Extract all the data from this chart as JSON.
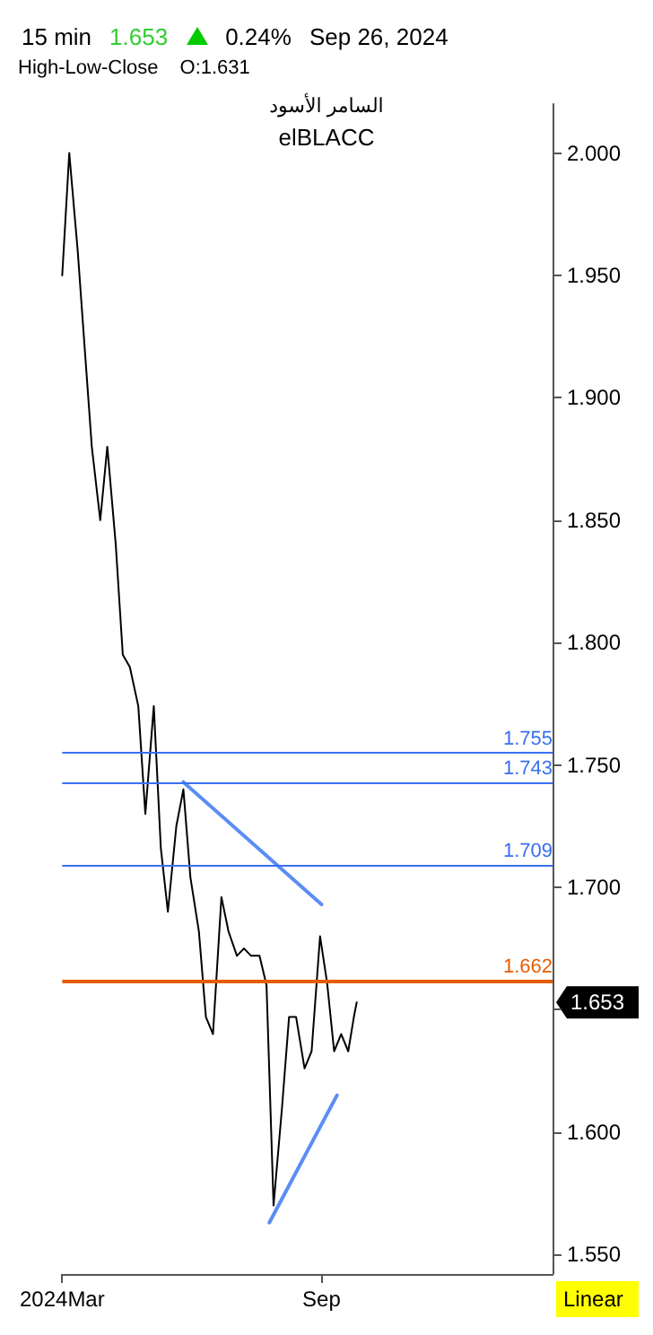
{
  "chart_data": {
    "type": "line",
    "marker": "none",
    "line_style": "solid",
    "grid": false,
    "xlim": [
      "2024-03-01",
      "2025-02-12"
    ],
    "xticks": [
      {
        "value": "2024-03-01",
        "label": "2024Mar"
      },
      {
        "value": "2024-09-01",
        "label": "Sep"
      }
    ],
    "ylim": [
      1.542,
      2.02
    ],
    "yticks": [
      {
        "value": 1.55,
        "label": "1.550"
      },
      {
        "value": 1.6,
        "label": "1.600"
      },
      {
        "value": 1.65,
        "label": null
      },
      {
        "value": 1.7,
        "label": "1.700"
      },
      {
        "value": 1.75,
        "label": "1.750"
      },
      {
        "value": 1.8,
        "label": "1.800"
      },
      {
        "value": 1.85,
        "label": "1.850"
      },
      {
        "value": 1.9,
        "label": "1.900"
      },
      {
        "value": 1.95,
        "label": "1.950"
      },
      {
        "value": 2.0,
        "label": "2.000"
      }
    ],
    "series": [
      {
        "color": "#000000",
        "x": [
          "2024-03-01",
          "2024-03-06",
          "2024-03-12",
          "2024-03-17",
          "2024-03-22",
          "2024-03-28",
          "2024-04-02",
          "2024-04-08",
          "2024-04-13",
          "2024-04-18",
          "2024-04-24",
          "2024-04-29",
          "2024-05-05",
          "2024-05-10",
          "2024-05-15",
          "2024-05-21",
          "2024-05-26",
          "2024-05-31",
          "2024-06-06",
          "2024-06-11",
          "2024-06-16",
          "2024-06-22",
          "2024-06-27",
          "2024-07-03",
          "2024-07-08",
          "2024-07-13",
          "2024-07-19",
          "2024-07-24",
          "2024-07-29",
          "2024-08-04",
          "2024-08-09",
          "2024-08-14",
          "2024-08-20",
          "2024-08-25",
          "2024-08-31",
          "2024-09-05",
          "2024-09-10",
          "2024-09-15",
          "2024-09-20",
          "2024-09-24",
          "2024-09-26"
        ],
        "values": [
          1.95,
          2.0,
          1.96,
          1.92,
          1.88,
          1.85,
          1.88,
          1.84,
          1.795,
          1.79,
          1.774,
          1.73,
          1.774,
          1.716,
          1.69,
          1.725,
          1.74,
          1.704,
          1.682,
          1.647,
          1.64,
          1.696,
          1.682,
          1.672,
          1.675,
          1.672,
          1.672,
          1.66,
          1.57,
          1.61,
          1.647,
          1.647,
          1.626,
          1.633,
          1.68,
          1.661,
          1.633,
          1.64,
          1.633,
          1.647,
          1.653
        ]
      },
      {
        "type": "line",
        "color": "#5b8df6",
        "x": [
          "2024-05-26",
          "2024-09-01"
        ],
        "values": [
          1.743,
          1.693
        ]
      },
      {
        "type": "line",
        "color": "#5b8df6",
        "x": [
          "2024-07-26",
          "2024-09-12"
        ],
        "values": [
          1.563,
          1.615
        ]
      }
    ],
    "ref_lines": [
      {
        "axis": "y",
        "value": 1.755,
        "label": "1.755",
        "color": "#3a6ff0"
      },
      {
        "axis": "y",
        "value": 1.743,
        "label": "1.743",
        "color": "#3a6ff0"
      },
      {
        "axis": "y",
        "value": 1.709,
        "label": "1.709",
        "color": "#3a6ff0"
      },
      {
        "axis": "y",
        "value": 1.662,
        "label": "1.662",
        "color": "#e65c00"
      }
    ],
    "annotations": [
      "15 min",
      "1.653",
      "0.24%",
      "Sep 26, 2024",
      "High-Low-Close",
      "O:1.631",
      "السامر الأسود",
      "elBLACC",
      "1.653",
      "Linear"
    ]
  }
}
